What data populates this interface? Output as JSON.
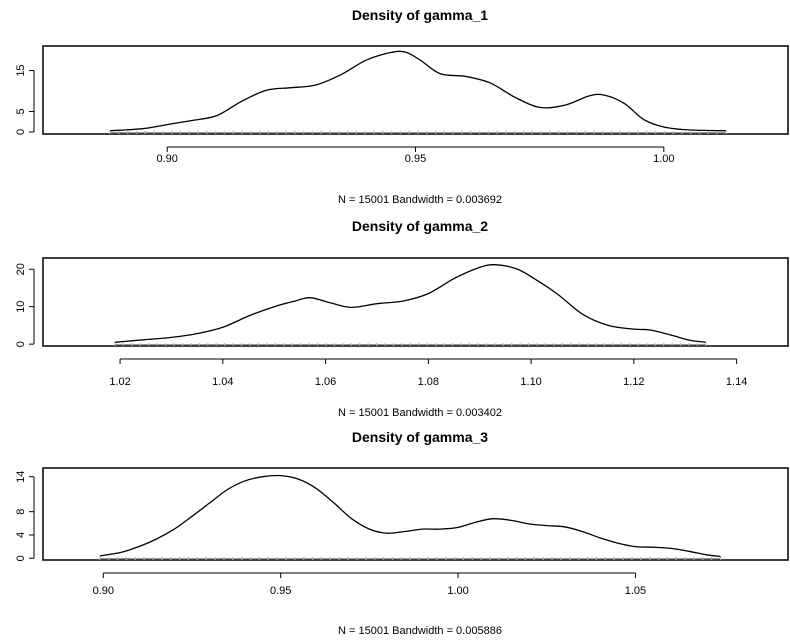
{
  "chart_data": [
    {
      "type": "line",
      "title": "Density of gamma_1",
      "xlabel": "N = 15001   Bandwidth = 0.003692",
      "ylabel": "",
      "xlim": [
        0.875,
        1.025
      ],
      "ylim": [
        -0.5,
        21
      ],
      "xticks": [
        0.9,
        0.95,
        1.0
      ],
      "xtick_labels": [
        "0.90",
        "0.95",
        "1.00"
      ],
      "yticks": [
        0,
        5,
        15
      ],
      "ytick_labels": [
        "0",
        "5",
        "15"
      ],
      "series": [
        {
          "x": [
            0.8885,
            0.895,
            0.9,
            0.905,
            0.91,
            0.915,
            0.92,
            0.925,
            0.93,
            0.935,
            0.94,
            0.945,
            0.948,
            0.951,
            0.955,
            0.96,
            0.965,
            0.97,
            0.975,
            0.98,
            0.985,
            0.988,
            0.992,
            0.996,
            1.0,
            1.005,
            1.0125
          ],
          "y": [
            0.3,
            0.8,
            1.8,
            2.8,
            4.0,
            7.5,
            10.2,
            10.8,
            11.5,
            14.0,
            17.5,
            19.4,
            19.5,
            17.5,
            14.2,
            13.6,
            12.0,
            8.5,
            6.0,
            6.5,
            8.8,
            9.0,
            7.0,
            3.0,
            1.2,
            0.5,
            0.3
          ]
        }
      ]
    },
    {
      "type": "line",
      "title": "Density of gamma_2",
      "xlabel": "N = 15001   Bandwidth = 0.003402",
      "ylabel": "",
      "xlim": [
        1.005,
        1.15
      ],
      "ylim": [
        -0.5,
        23
      ],
      "xticks": [
        1.02,
        1.04,
        1.06,
        1.08,
        1.1,
        1.12,
        1.14
      ],
      "xtick_labels": [
        "1.02",
        "1.04",
        "1.06",
        "1.08",
        "1.10",
        "1.12",
        "1.14"
      ],
      "yticks": [
        0,
        10,
        20
      ],
      "ytick_labels": [
        "0",
        "10",
        "20"
      ],
      "series": [
        {
          "x": [
            1.019,
            1.025,
            1.03,
            1.035,
            1.04,
            1.045,
            1.05,
            1.054,
            1.057,
            1.061,
            1.065,
            1.07,
            1.075,
            1.08,
            1.085,
            1.09,
            1.093,
            1.097,
            1.1,
            1.105,
            1.11,
            1.115,
            1.12,
            1.123,
            1.127,
            1.131,
            1.134
          ],
          "y": [
            0.5,
            1.2,
            1.8,
            2.8,
            4.5,
            7.5,
            10.0,
            11.5,
            12.4,
            11.0,
            9.8,
            10.8,
            11.5,
            13.5,
            17.5,
            20.5,
            21.2,
            20.2,
            18.0,
            13.5,
            8.0,
            5.0,
            4.0,
            3.8,
            2.5,
            1.0,
            0.5
          ]
        }
      ]
    },
    {
      "type": "line",
      "title": "Density of gamma_3",
      "xlabel": "N = 15001   Bandwidth = 0.005886",
      "ylabel": "",
      "xlim": [
        0.883,
        1.093
      ],
      "ylim": [
        -0.3,
        15.5
      ],
      "xticks": [
        0.9,
        0.95,
        1.0,
        1.05
      ],
      "xtick_labels": [
        "0.90",
        "0.95",
        "1.00",
        "1.05"
      ],
      "yticks": [
        0,
        4,
        8,
        14
      ],
      "ytick_labels": [
        "0",
        "4",
        "8",
        "14"
      ],
      "series": [
        {
          "x": [
            0.899,
            0.905,
            0.91,
            0.915,
            0.92,
            0.925,
            0.93,
            0.935,
            0.94,
            0.945,
            0.95,
            0.955,
            0.96,
            0.965,
            0.97,
            0.975,
            0.98,
            0.985,
            0.99,
            0.995,
            1.0,
            1.005,
            1.01,
            1.015,
            1.02,
            1.025,
            1.03,
            1.035,
            1.04,
            1.045,
            1.05,
            1.055,
            1.06,
            1.065,
            1.07,
            1.074
          ],
          "y": [
            0.4,
            1.0,
            2.0,
            3.3,
            5.0,
            7.2,
            9.5,
            11.8,
            13.3,
            14.0,
            14.2,
            13.6,
            12.0,
            9.5,
            6.8,
            5.0,
            4.3,
            4.6,
            5.0,
            5.0,
            5.3,
            6.2,
            6.8,
            6.5,
            5.9,
            5.6,
            5.4,
            4.6,
            3.5,
            2.6,
            2.0,
            1.9,
            1.7,
            1.2,
            0.6,
            0.3
          ]
        }
      ]
    }
  ]
}
